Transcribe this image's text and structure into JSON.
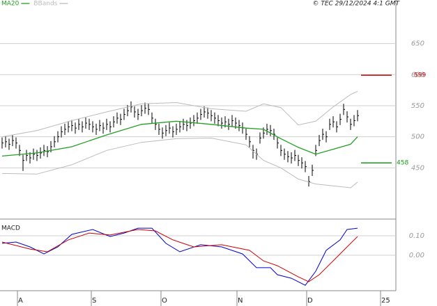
{
  "chart_data": [
    {
      "type": "ohlc",
      "annotation": "© TEC 29/12/2024 4:1 GMT",
      "x": [
        0,
        1,
        2,
        3,
        4,
        5,
        6,
        7,
        8,
        9,
        10,
        11,
        12,
        13,
        14,
        15,
        16,
        17,
        18,
        19,
        20,
        21,
        22,
        23,
        24,
        25,
        26,
        27,
        28,
        29,
        30,
        31,
        32,
        33,
        34,
        35,
        36,
        37,
        38,
        39,
        40,
        41,
        42,
        43,
        44,
        45,
        46,
        47,
        48,
        49,
        50,
        51,
        52,
        53,
        54,
        55,
        56,
        57,
        58,
        59,
        60,
        61,
        62,
        63,
        64,
        65,
        66,
        67,
        68,
        69,
        70,
        71,
        72,
        73,
        74,
        75,
        76,
        77,
        78,
        79,
        80,
        81,
        82,
        83,
        84,
        85,
        86,
        87,
        88,
        89,
        90,
        91,
        92,
        93,
        94,
        95,
        96,
        97,
        98,
        99,
        100,
        101,
        102
      ],
      "high": [
        499,
        501,
        497,
        503,
        499,
        487,
        471,
        479,
        475,
        481,
        479,
        483,
        487,
        485,
        493,
        501,
        509,
        517,
        521,
        525,
        527,
        523,
        529,
        525,
        531,
        529,
        525,
        521,
        527,
        523,
        529,
        525,
        533,
        539,
        537,
        545,
        551,
        557,
        549,
        545,
        551,
        555,
        553,
        539,
        529,
        521,
        515,
        519,
        523,
        517,
        521,
        525,
        529,
        527,
        531,
        535,
        539,
        545,
        549,
        547,
        543,
        539,
        535,
        531,
        533,
        529,
        535,
        531,
        527,
        523,
        513,
        501,
        487,
        481,
        507,
        515,
        521,
        519,
        513,
        499,
        487,
        481,
        477,
        475,
        479,
        471,
        467,
        461,
        437,
        455,
        487,
        503,
        513,
        509,
        529,
        533,
        525,
        537,
        553,
        541,
        529,
        535,
        543
      ],
      "low": [
        481,
        483,
        479,
        485,
        481,
        469,
        445,
        461,
        457,
        463,
        461,
        465,
        469,
        467,
        475,
        483,
        491,
        499,
        503,
        507,
        509,
        505,
        511,
        507,
        513,
        511,
        507,
        503,
        509,
        505,
        511,
        507,
        515,
        521,
        519,
        527,
        533,
        539,
        531,
        527,
        533,
        537,
        535,
        521,
        511,
        503,
        497,
        501,
        505,
        499,
        503,
        507,
        511,
        509,
        513,
        517,
        521,
        527,
        531,
        529,
        525,
        521,
        517,
        513,
        515,
        511,
        517,
        513,
        509,
        505,
        495,
        483,
        465,
        463,
        489,
        497,
        503,
        501,
        495,
        481,
        469,
        463,
        459,
        457,
        461,
        453,
        449,
        443,
        420,
        437,
        469,
        485,
        495,
        491,
        511,
        515,
        507,
        519,
        535,
        523,
        511,
        517,
        525
      ],
      "close": [
        490,
        492,
        488,
        494,
        490,
        478,
        462,
        470,
        466,
        472,
        470,
        474,
        478,
        476,
        484,
        492,
        500,
        508,
        512,
        516,
        518,
        514,
        520,
        516,
        522,
        520,
        516,
        512,
        518,
        514,
        520,
        516,
        524,
        530,
        528,
        536,
        542,
        548,
        540,
        536,
        542,
        546,
        544,
        530,
        520,
        512,
        506,
        510,
        514,
        508,
        512,
        516,
        520,
        518,
        522,
        526,
        530,
        536,
        540,
        538,
        534,
        530,
        526,
        522,
        524,
        520,
        526,
        522,
        518,
        514,
        504,
        492,
        478,
        472,
        498,
        506,
        512,
        510,
        504,
        490,
        478,
        472,
        468,
        466,
        470,
        462,
        458,
        452,
        428,
        446,
        478,
        494,
        504,
        500,
        520,
        524,
        516,
        528,
        544,
        532,
        520,
        526,
        534
      ],
      "color": "#000000",
      "series": [
        {
          "name": "MA20",
          "color": "#22a022",
          "x": [
            0,
            10,
            20,
            30,
            40,
            50,
            60,
            70,
            75,
            80,
            85,
            90,
            95,
            100,
            102
          ],
          "values": [
            469,
            474,
            484,
            503,
            520,
            525,
            520,
            514,
            512,
            497,
            483,
            472,
            480,
            488,
            500
          ]
        },
        {
          "name": "BBands",
          "color": "#bbbbbb",
          "x": [
            0,
            10,
            20,
            30,
            40,
            50,
            60,
            70,
            75,
            80,
            85,
            90,
            95,
            100,
            102
          ],
          "upper": [
            500,
            510,
            526,
            540,
            553,
            555,
            545,
            541,
            553,
            547,
            519,
            525,
            548,
            568,
            573
          ],
          "lower": [
            441,
            440,
            455,
            478,
            491,
            497,
            498,
            487,
            462,
            450,
            432,
            424,
            421,
            418,
            427
          ]
        }
      ],
      "levels": [
        {
          "value": 599,
          "color": "#c00000"
        },
        {
          "value": 458,
          "color": "#1a9a1a"
        }
      ],
      "xlim": [
        -0.6,
        113
      ],
      "ylim": [
        371,
        720
      ],
      "yticks": [
        450,
        500,
        550,
        600,
        650
      ],
      "grid": true
    },
    {
      "type": "line",
      "title": "MACD",
      "series": [
        {
          "color": "#0000cc",
          "x": [
            0,
            4,
            8,
            12,
            16,
            20,
            26,
            31,
            35,
            39,
            43,
            47,
            51,
            57,
            63,
            69,
            73,
            77,
            79,
            83,
            87,
            90,
            93,
            97,
            99,
            102
          ],
          "values": [
            0.061,
            0.068,
            0.043,
            0.007,
            0.043,
            0.107,
            0.132,
            0.096,
            0.114,
            0.139,
            0.139,
            0.061,
            0.018,
            0.054,
            0.043,
            0.007,
            -0.064,
            -0.064,
            -0.1,
            -0.118,
            -0.154,
            -0.082,
            0.025,
            0.079,
            0.132,
            0.139
          ]
        },
        {
          "color": "#cc0000",
          "x": [
            0,
            8,
            13,
            19,
            25,
            31,
            39,
            44,
            49,
            55,
            63,
            71,
            75,
            79,
            85,
            88,
            91,
            95,
            99,
            102
          ],
          "values": [
            0.068,
            0.032,
            0.018,
            0.079,
            0.114,
            0.104,
            0.132,
            0.125,
            0.079,
            0.043,
            0.054,
            0.025,
            -0.029,
            -0.054,
            -0.111,
            -0.136,
            -0.1,
            -0.029,
            0.043,
            0.096
          ]
        }
      ],
      "xlim": [
        -0.6,
        113
      ],
      "xticks": [
        {
          "value": 4.4,
          "label": "A"
        },
        {
          "value": 25.6,
          "label": "S"
        },
        {
          "value": 45.6,
          "label": "O"
        },
        {
          "value": 67.4,
          "label": "N"
        },
        {
          "value": 87.4,
          "label": "D"
        },
        {
          "value": 108.6,
          "label": "25"
        }
      ],
      "ylim": [
        -0.182,
        0.175
      ],
      "yticks": [
        {
          "value": 0.1,
          "label": "0.10"
        },
        {
          "value": 0,
          "label": "0.00"
        }
      ],
      "grid": true
    }
  ]
}
